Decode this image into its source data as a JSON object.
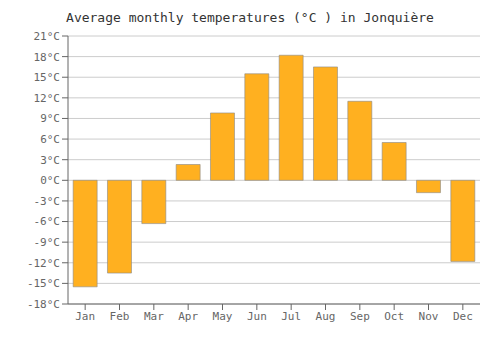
{
  "chart_data": {
    "type": "bar",
    "title": "Average monthly temperatures (°C ) in Jonquière",
    "categories": [
      "Jan",
      "Feb",
      "Mar",
      "Apr",
      "May",
      "Jun",
      "Jul",
      "Aug",
      "Sep",
      "Oct",
      "Nov",
      "Dec"
    ],
    "values": [
      -15.5,
      -13.5,
      -6.3,
      2.3,
      9.8,
      15.5,
      18.2,
      16.5,
      11.5,
      5.5,
      -1.8,
      -11.8
    ],
    "color": "#FFB020",
    "ylim": [
      -18,
      21
    ],
    "yticks": [
      {
        "value": -18,
        "label": "-18°C"
      },
      {
        "value": -15,
        "label": "-15°C"
      },
      {
        "value": -12,
        "label": "-12°C"
      },
      {
        "value": -9,
        "label": "-9°C"
      },
      {
        "value": -6,
        "label": "-6°C"
      },
      {
        "value": -3,
        "label": "-3°C"
      },
      {
        "value": 0,
        "label": "0°C"
      },
      {
        "value": 3,
        "label": "3°C"
      },
      {
        "value": 6,
        "label": "6°C"
      },
      {
        "value": 9,
        "label": "9°C"
      },
      {
        "value": 12,
        "label": "12°C"
      },
      {
        "value": 15,
        "label": "15°C"
      },
      {
        "value": 18,
        "label": "18°C"
      },
      {
        "value": 21,
        "label": "21°C"
      }
    ],
    "grid": true
  }
}
